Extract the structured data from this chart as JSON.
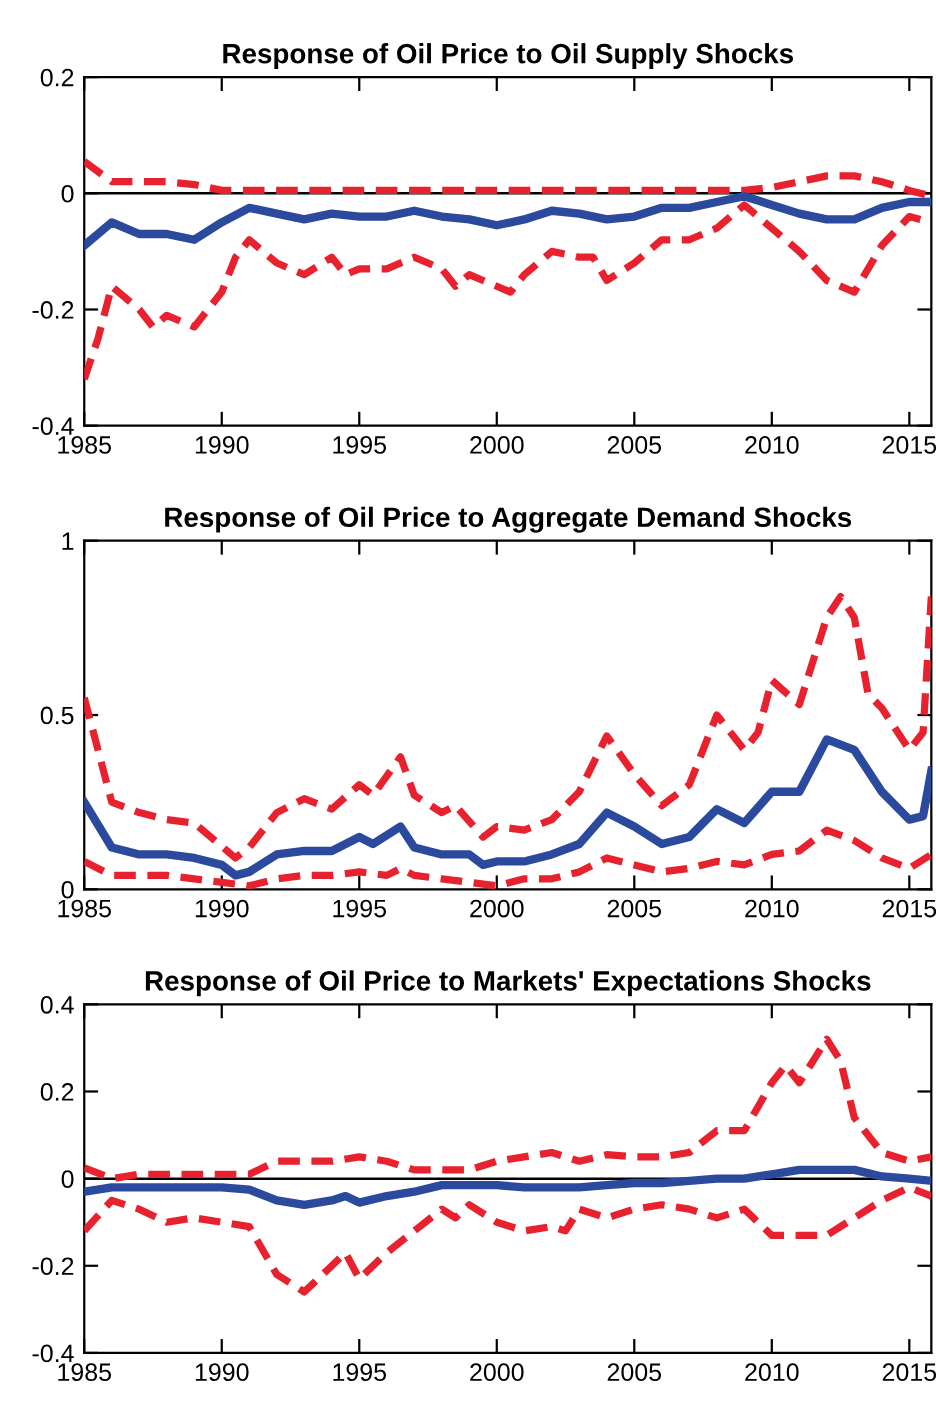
{
  "chart_data": [
    {
      "type": "line",
      "title": "Response of Oil Price to Oil Supply Shocks",
      "xlim": [
        1985,
        2015.8
      ],
      "xticks": [
        1985,
        1990,
        1995,
        2000,
        2005,
        2010,
        2015
      ],
      "ylim": [
        -0.4,
        0.2
      ],
      "yticks": [
        -0.4,
        -0.2,
        0,
        0.2
      ],
      "grid": false,
      "legend": false,
      "ref_lines": [
        {
          "axis": "y",
          "value": 0,
          "color": "#000000",
          "line_style": "solid"
        }
      ],
      "series": [
        {
          "color": "#e8212e",
          "line_style": "dashed",
          "x": [
            1985,
            1986,
            1987,
            1988,
            1989,
            1990,
            1992,
            1994,
            1996,
            1998,
            2000,
            2002,
            2004,
            2006,
            2008,
            2009,
            2010,
            2011,
            2012,
            2013,
            2014,
            2015,
            2015.8
          ],
          "values": [
            0.055,
            0.02,
            0.02,
            0.02,
            0.015,
            0.005,
            0.005,
            0.005,
            0.005,
            0.005,
            0.005,
            0.005,
            0.005,
            0.005,
            0.005,
            0.005,
            0.01,
            0.02,
            0.03,
            0.03,
            0.02,
            0.005,
            -0.005
          ]
        },
        {
          "color": "#2b4a9e",
          "line_style": "solid",
          "x": [
            1985,
            1986,
            1987,
            1988,
            1989,
            1990,
            1991,
            1992,
            1993,
            1994,
            1995,
            1996,
            1997,
            1998,
            1999,
            2000,
            2001,
            2002,
            2003,
            2004,
            2005,
            2006,
            2007,
            2008,
            2009,
            2010,
            2011,
            2012,
            2013,
            2014,
            2015,
            2015.8
          ],
          "values": [
            -0.09,
            -0.05,
            -0.07,
            -0.07,
            -0.08,
            -0.05,
            -0.025,
            -0.035,
            -0.045,
            -0.035,
            -0.04,
            -0.04,
            -0.03,
            -0.04,
            -0.045,
            -0.055,
            -0.045,
            -0.03,
            -0.035,
            -0.045,
            -0.04,
            -0.025,
            -0.025,
            -0.015,
            -0.005,
            -0.02,
            -0.035,
            -0.045,
            -0.045,
            -0.025,
            -0.015,
            -0.015
          ]
        },
        {
          "color": "#e8212e",
          "line_style": "dashed",
          "x": [
            1985,
            1985.5,
            1986,
            1987,
            1987.5,
            1988,
            1989,
            1990,
            1990.5,
            1991,
            1992,
            1993,
            1994,
            1994.5,
            1995,
            1996,
            1997,
            1998,
            1998.5,
            1999,
            2000,
            2000.5,
            2001,
            2002,
            2003,
            2003.5,
            2004,
            2005,
            2006,
            2007,
            2008,
            2009,
            2010,
            2011,
            2012,
            2013,
            2013.5,
            2014,
            2015,
            2015.8
          ],
          "values": [
            -0.32,
            -0.25,
            -0.16,
            -0.2,
            -0.23,
            -0.21,
            -0.23,
            -0.17,
            -0.11,
            -0.08,
            -0.12,
            -0.14,
            -0.11,
            -0.14,
            -0.13,
            -0.13,
            -0.11,
            -0.13,
            -0.16,
            -0.14,
            -0.16,
            -0.17,
            -0.14,
            -0.1,
            -0.11,
            -0.11,
            -0.15,
            -0.12,
            -0.08,
            -0.08,
            -0.06,
            -0.02,
            -0.06,
            -0.1,
            -0.15,
            -0.17,
            -0.13,
            -0.09,
            -0.04,
            -0.05
          ]
        }
      ]
    },
    {
      "type": "line",
      "title": "Response of Oil Price to Aggregate Demand Shocks",
      "xlim": [
        1985,
        2015.8
      ],
      "xticks": [
        1985,
        1990,
        1995,
        2000,
        2005,
        2010,
        2015
      ],
      "ylim": [
        0,
        1
      ],
      "yticks": [
        0,
        0.5,
        1
      ],
      "grid": false,
      "legend": false,
      "series": [
        {
          "color": "#e8212e",
          "line_style": "dashed",
          "x": [
            1985,
            1986,
            1987,
            1988,
            1989,
            1990.5,
            1991,
            1992,
            1993,
            1994,
            1995,
            1995.5,
            1996.5,
            1997,
            1998,
            1998.5,
            1999.5,
            2000,
            2001,
            2002,
            2003,
            2004,
            2005,
            2006,
            2007,
            2008,
            2009,
            2009.5,
            2010,
            2011,
            2012,
            2012.5,
            2013,
            2013.5,
            2014,
            2015,
            2015.5,
            2015.8
          ],
          "values": [
            0.55,
            0.25,
            0.22,
            0.2,
            0.19,
            0.09,
            0.12,
            0.22,
            0.26,
            0.23,
            0.3,
            0.27,
            0.38,
            0.27,
            0.22,
            0.24,
            0.15,
            0.18,
            0.17,
            0.2,
            0.28,
            0.44,
            0.33,
            0.24,
            0.3,
            0.5,
            0.4,
            0.45,
            0.6,
            0.53,
            0.78,
            0.84,
            0.78,
            0.56,
            0.52,
            0.4,
            0.45,
            0.84
          ]
        },
        {
          "color": "#2b4a9e",
          "line_style": "solid",
          "x": [
            1985,
            1986,
            1987,
            1988,
            1989,
            1990,
            1990.5,
            1991,
            1992,
            1993,
            1994,
            1995,
            1995.5,
            1996.5,
            1997,
            1998,
            1999,
            1999.5,
            2000,
            2001,
            2002,
            2003,
            2004,
            2005,
            2006,
            2007,
            2008,
            2009,
            2010,
            2011,
            2012,
            2013,
            2014,
            2015,
            2015.5,
            2015.8
          ],
          "values": [
            0.25,
            0.12,
            0.1,
            0.1,
            0.09,
            0.07,
            0.04,
            0.05,
            0.1,
            0.11,
            0.11,
            0.15,
            0.13,
            0.18,
            0.12,
            0.1,
            0.1,
            0.07,
            0.08,
            0.08,
            0.1,
            0.13,
            0.22,
            0.18,
            0.13,
            0.15,
            0.23,
            0.19,
            0.28,
            0.28,
            0.43,
            0.4,
            0.28,
            0.2,
            0.21,
            0.34
          ]
        },
        {
          "color": "#e8212e",
          "line_style": "dashed",
          "x": [
            1985,
            1986,
            1987,
            1988,
            1989,
            1990,
            1991,
            1992,
            1993,
            1994,
            1995,
            1996,
            1996.5,
            1997,
            1998,
            1999,
            2000,
            2001,
            2002,
            2003,
            2004,
            2005,
            2006,
            2007,
            2008,
            2009,
            2010,
            2011,
            2012,
            2013,
            2014,
            2015,
            2015.8
          ],
          "values": [
            0.08,
            0.04,
            0.04,
            0.04,
            0.03,
            0.02,
            0.01,
            0.03,
            0.04,
            0.04,
            0.05,
            0.04,
            0.06,
            0.04,
            0.03,
            0.02,
            0.01,
            0.03,
            0.03,
            0.05,
            0.09,
            0.07,
            0.05,
            0.06,
            0.08,
            0.07,
            0.1,
            0.11,
            0.17,
            0.14,
            0.09,
            0.06,
            0.1
          ]
        }
      ]
    },
    {
      "type": "line",
      "title": "Response of Oil Price to Markets' Expectations Shocks",
      "xlim": [
        1985,
        2015.8
      ],
      "xticks": [
        1985,
        1990,
        1995,
        2000,
        2005,
        2010,
        2015
      ],
      "ylim": [
        -0.4,
        0.4
      ],
      "yticks": [
        -0.4,
        -0.2,
        0,
        0.2,
        0.4
      ],
      "grid": false,
      "legend": false,
      "ref_lines": [
        {
          "axis": "y",
          "value": 0,
          "color": "#000000",
          "line_style": "solid"
        }
      ],
      "series": [
        {
          "color": "#e8212e",
          "line_style": "dashed",
          "x": [
            1985,
            1986,
            1987,
            1988,
            1989,
            1990,
            1991,
            1992,
            1993,
            1994,
            1995,
            1996,
            1997,
            1998,
            1999,
            2000,
            2001,
            2002,
            2003,
            2004,
            2005,
            2006,
            2007,
            2008,
            2009,
            2010,
            2010.5,
            2011,
            2012,
            2012.5,
            2013,
            2014,
            2015,
            2015.8
          ],
          "values": [
            0.025,
            0.0,
            0.01,
            0.01,
            0.01,
            0.01,
            0.01,
            0.04,
            0.04,
            0.04,
            0.05,
            0.04,
            0.02,
            0.02,
            0.02,
            0.04,
            0.05,
            0.06,
            0.04,
            0.055,
            0.05,
            0.05,
            0.06,
            0.11,
            0.11,
            0.22,
            0.26,
            0.22,
            0.32,
            0.27,
            0.14,
            0.06,
            0.04,
            0.05
          ]
        },
        {
          "color": "#2b4a9e",
          "line_style": "solid",
          "x": [
            1985,
            1986,
            1987,
            1988,
            1989,
            1990,
            1991,
            1992,
            1993,
            1994,
            1994.5,
            1995,
            1996,
            1997,
            1998,
            1999,
            2000,
            2001,
            2002,
            2003,
            2004,
            2005,
            2006,
            2007,
            2008,
            2009,
            2010,
            2011,
            2012,
            2013,
            2014,
            2015,
            2015.8
          ],
          "values": [
            -0.03,
            -0.02,
            -0.02,
            -0.02,
            -0.02,
            -0.02,
            -0.025,
            -0.05,
            -0.06,
            -0.05,
            -0.04,
            -0.055,
            -0.04,
            -0.03,
            -0.015,
            -0.015,
            -0.015,
            -0.02,
            -0.02,
            -0.02,
            -0.015,
            -0.01,
            -0.01,
            -0.005,
            0.0,
            0.0,
            0.01,
            0.02,
            0.02,
            0.02,
            0.005,
            0.0,
            -0.005
          ]
        },
        {
          "color": "#e8212e",
          "line_style": "dashed",
          "x": [
            1985,
            1986,
            1987,
            1988,
            1989,
            1990,
            1991,
            1992,
            1993,
            1994,
            1994.5,
            1995,
            1996,
            1997,
            1998,
            1998.5,
            1999,
            2000,
            2001,
            2002,
            2002.5,
            2003,
            2004,
            2005,
            2006,
            2007,
            2008,
            2009,
            2010,
            2011,
            2012,
            2013,
            2014,
            2015,
            2015.8
          ],
          "values": [
            -0.12,
            -0.05,
            -0.07,
            -0.1,
            -0.09,
            -0.1,
            -0.11,
            -0.22,
            -0.26,
            -0.2,
            -0.17,
            -0.23,
            -0.17,
            -0.12,
            -0.07,
            -0.09,
            -0.06,
            -0.1,
            -0.12,
            -0.11,
            -0.12,
            -0.07,
            -0.09,
            -0.07,
            -0.06,
            -0.07,
            -0.09,
            -0.07,
            -0.13,
            -0.13,
            -0.13,
            -0.09,
            -0.05,
            -0.02,
            -0.04
          ]
        }
      ]
    }
  ]
}
